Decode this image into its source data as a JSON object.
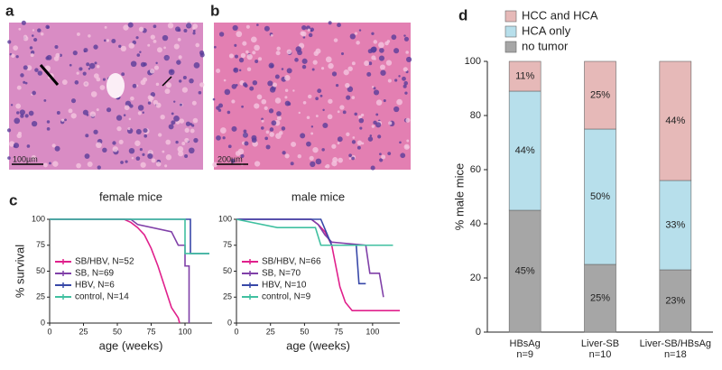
{
  "images": [
    {
      "panel_label": "a",
      "scale_bar": "100µm"
    },
    {
      "panel_label": "b",
      "scale_bar": "200µm"
    }
  ],
  "chart_data": [
    {
      "type": "line",
      "panel_label": "c",
      "title": "female mice",
      "x_label": "age (weeks)",
      "y_label": "% survival",
      "xlim": [
        0,
        120
      ],
      "xticks": [
        0,
        25,
        50,
        75,
        100
      ],
      "ylim": [
        0,
        100
      ],
      "yticks": [
        0,
        25,
        50,
        75,
        100
      ],
      "series": [
        {
          "name": "SB/HBV, N=52",
          "color": "#e0208c",
          "x": [
            0,
            55,
            60,
            65,
            70,
            75,
            80,
            85,
            90,
            95,
            96
          ],
          "values": [
            100,
            100,
            97,
            92,
            85,
            72,
            55,
            35,
            15,
            5,
            0
          ]
        },
        {
          "name": "SB, N=69",
          "color": "#8040a8",
          "x": [
            0,
            60,
            65,
            90,
            95,
            100,
            100,
            103,
            103
          ],
          "values": [
            100,
            100,
            95,
            88,
            75,
            75,
            55,
            55,
            0
          ]
        },
        {
          "name": "HBV, N=6",
          "color": "#3848a8",
          "x": [
            0,
            104,
            104,
            118
          ],
          "values": [
            100,
            100,
            67,
            67
          ]
        },
        {
          "name": "control, N=14",
          "color": "#40c0a0",
          "x": [
            0,
            100,
            100,
            118
          ],
          "values": [
            100,
            100,
            67,
            67
          ]
        }
      ]
    },
    {
      "type": "line",
      "title": "male mice",
      "x_label": "age (weeks)",
      "xlim": [
        0,
        120
      ],
      "xticks": [
        0,
        25,
        50,
        75,
        100
      ],
      "ylim": [
        0,
        100
      ],
      "yticks": [
        0,
        25,
        50,
        75,
        100
      ],
      "series": [
        {
          "name": "SB/HBV, N=66",
          "color": "#e0208c",
          "x": [
            0,
            55,
            60,
            65,
            70,
            73,
            76,
            80,
            85,
            120
          ],
          "values": [
            100,
            100,
            95,
            88,
            75,
            55,
            35,
            20,
            12,
            12
          ]
        },
        {
          "name": "SB, N=70",
          "color": "#8040a8",
          "x": [
            0,
            55,
            60,
            65,
            70,
            95,
            98,
            105,
            108
          ],
          "values": [
            100,
            100,
            95,
            85,
            78,
            75,
            48,
            48,
            25
          ]
        },
        {
          "name": "HBV, N=10",
          "color": "#3848a8",
          "x": [
            0,
            62,
            70,
            88,
            90,
            95
          ],
          "values": [
            100,
            100,
            75,
            75,
            38,
            38
          ]
        },
        {
          "name": "control, N=9",
          "color": "#40c0a0",
          "x": [
            0,
            30,
            58,
            62,
            115
          ],
          "values": [
            100,
            92,
            92,
            75,
            75
          ]
        }
      ]
    },
    {
      "type": "stacked_bar",
      "panel_label": "d",
      "y_label": "% male mice",
      "categories": [
        "HBsAg",
        "Liver-SB",
        "Liver-SB/HBsAg"
      ],
      "category_notes": [
        "n=9",
        "n=10",
        "n=18"
      ],
      "ylim": [
        0,
        100
      ],
      "yticks": [
        0,
        20,
        40,
        60,
        80,
        100
      ],
      "series": [
        {
          "name": "no tumor",
          "color": "#a6a6a6",
          "values": [
            45,
            25,
            23
          ],
          "value_labels": [
            "45%",
            "25%",
            "23%"
          ]
        },
        {
          "name": "HCA only",
          "color": "#b7dfeb",
          "values": [
            44,
            50,
            33
          ],
          "value_labels": [
            "44%",
            "50%",
            "33%"
          ]
        },
        {
          "name": "HCC and HCA",
          "color": "#e6b9b8",
          "values": [
            11,
            25,
            44
          ],
          "value_labels": [
            "11%",
            "25%",
            "44%"
          ]
        }
      ]
    }
  ]
}
